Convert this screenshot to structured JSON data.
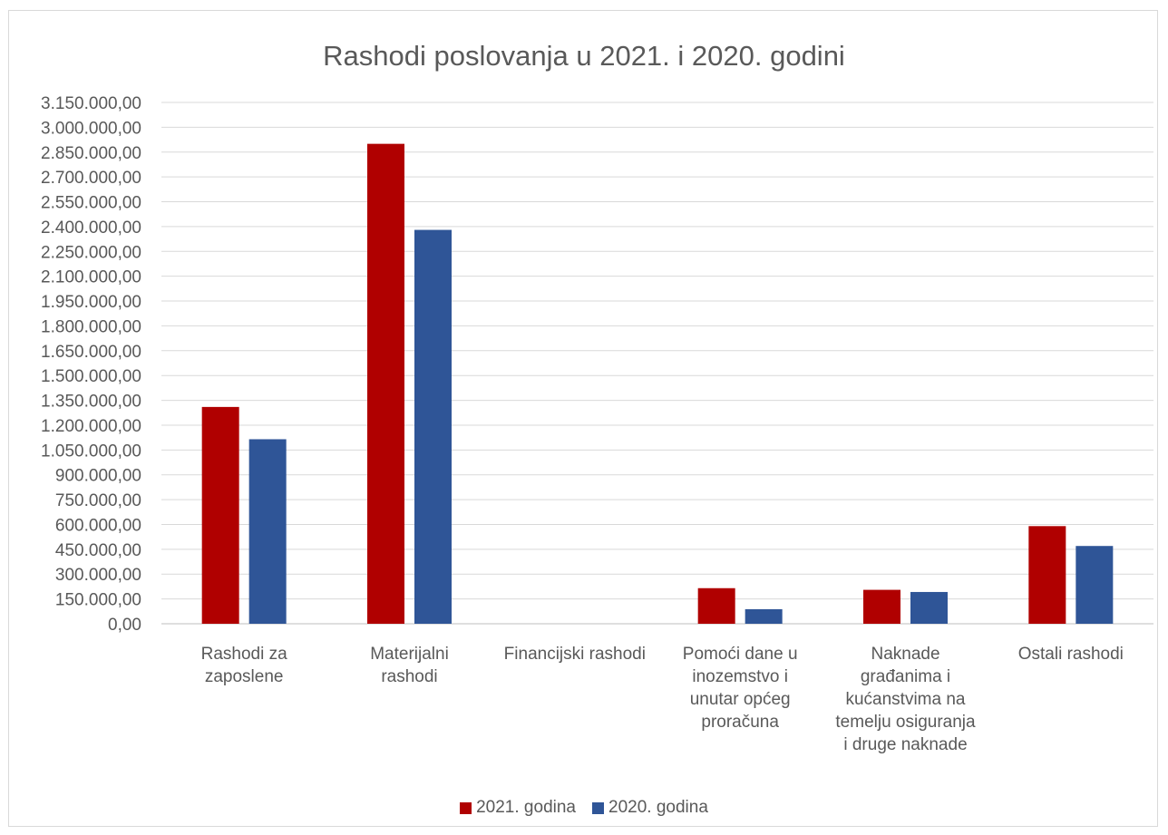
{
  "chart_data": {
    "type": "bar",
    "title": "Rashodi poslovanja u 2021. i 2020. godini",
    "categories": [
      [
        "Rashodi za",
        "zaposlene"
      ],
      [
        "Materijalni",
        "rashodi"
      ],
      [
        "Financijski rashodi"
      ],
      [
        "Pomoći dane u",
        "inozemstvo i",
        "unutar općeg",
        "proračuna"
      ],
      [
        "Naknade",
        "građanima i",
        "kućanstvima na",
        "temelju osiguranja",
        "i druge naknade"
      ],
      [
        "Ostali rashodi"
      ]
    ],
    "series": [
      {
        "name": "2021. godina",
        "color": "#b00000",
        "values": [
          1310000,
          2900000,
          0,
          215000,
          205000,
          590000
        ]
      },
      {
        "name": "2020. godina",
        "color": "#2f5597",
        "values": [
          1115000,
          2380000,
          0,
          88000,
          192000,
          470000
        ]
      }
    ],
    "ylim": [
      0,
      3150000
    ],
    "yticks": [
      "0,00",
      "150.000,00",
      "300.000,00",
      "450.000,00",
      "600.000,00",
      "750.000,00",
      "900.000,00",
      "1.050.000,00",
      "1.200.000,00",
      "1.350.000,00",
      "1.500.000,00",
      "1.650.000,00",
      "1.800.000,00",
      "1.950.000,00",
      "2.100.000,00",
      "2.250.000,00",
      "2.400.000,00",
      "2.550.000,00",
      "2.700.000,00",
      "2.850.000,00",
      "3.000.000,00",
      "3.150.000,00"
    ],
    "grid": true,
    "legend_position": "bottom"
  }
}
